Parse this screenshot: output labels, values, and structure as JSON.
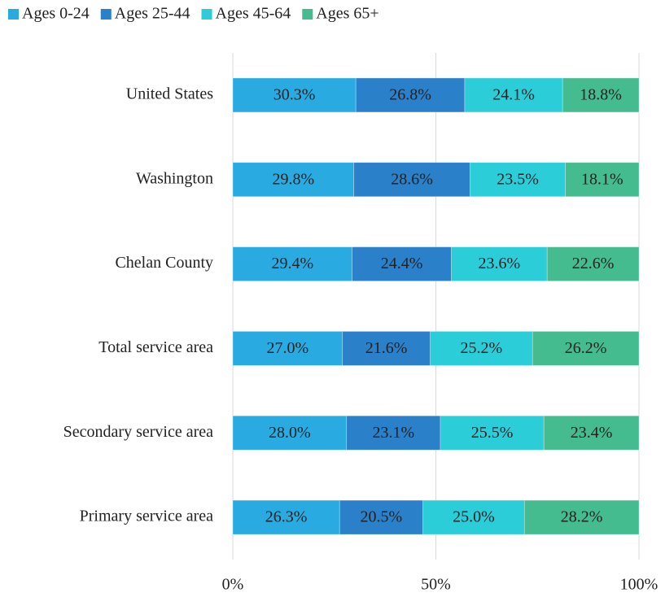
{
  "chart_data": {
    "type": "stacked_bar_horizontal",
    "categories": [
      "United States",
      "Washington",
      "Chelan County",
      "Total service area",
      "Secondary service area",
      "Primary service area"
    ],
    "series": [
      {
        "name": "Ages 0-24",
        "color": "#29abe2",
        "values": [
          30.3,
          29.8,
          29.4,
          27.0,
          28.0,
          26.3
        ],
        "value_labels": [
          "30.3%",
          "29.8%",
          "29.4%",
          "27.0%",
          "28.0%",
          "26.3%"
        ]
      },
      {
        "name": "Ages 25-44",
        "color": "#2a80c9",
        "values": [
          26.8,
          28.6,
          24.4,
          21.6,
          23.1,
          20.5
        ],
        "value_labels": [
          "26.8%",
          "28.6%",
          "24.4%",
          "21.6%",
          "23.1%",
          "20.5%"
        ]
      },
      {
        "name": "Ages 45-64",
        "color": "#2bcdd8",
        "values": [
          24.1,
          23.5,
          23.6,
          25.2,
          25.5,
          25.0
        ],
        "value_labels": [
          "24.1%",
          "23.5%",
          "23.6%",
          "25.2%",
          "25.5%",
          "25.0%"
        ]
      },
      {
        "name": "Ages 65+",
        "color": "#45bb90",
        "values": [
          18.8,
          18.1,
          22.6,
          26.2,
          23.4,
          28.2
        ],
        "value_labels": [
          "18.8%",
          "18.1%",
          "22.6%",
          "26.2%",
          "23.4%",
          "28.2%"
        ]
      }
    ],
    "xlim": [
      0,
      100
    ],
    "xticks": [
      {
        "value": 0,
        "label": "0%"
      },
      {
        "value": 50,
        "label": "50%"
      },
      {
        "value": 100,
        "label": "100%"
      }
    ],
    "grid": true,
    "legend": "top"
  }
}
